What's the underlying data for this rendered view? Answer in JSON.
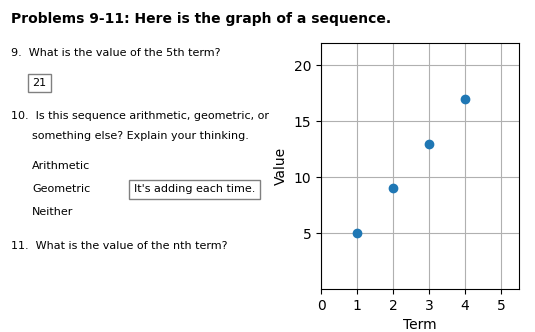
{
  "chart_data": {
    "type": "scatter",
    "title": "Problems 9-11: Here is the graph of a sequence.",
    "x": [
      1,
      2,
      3,
      4
    ],
    "values": [
      5,
      9,
      13,
      17
    ],
    "xlabel": "Term",
    "ylabel": "Value",
    "xlim": [
      0,
      5.5
    ],
    "ylim": [
      0,
      22
    ],
    "xticks": [
      0,
      1,
      2,
      3,
      4,
      5
    ],
    "yticks": [
      5,
      10,
      15,
      20
    ],
    "grid": true,
    "annotations": [
      "9.  What is the value of the 5th term?",
      "21",
      "10.  Is this sequence arithmetic, geometric, or",
      "      something else? Explain your thinking.",
      "Arithmetic",
      "Geometric",
      "Neither",
      "It's adding each time.",
      "11.  What is the value of the nth term?"
    ]
  }
}
